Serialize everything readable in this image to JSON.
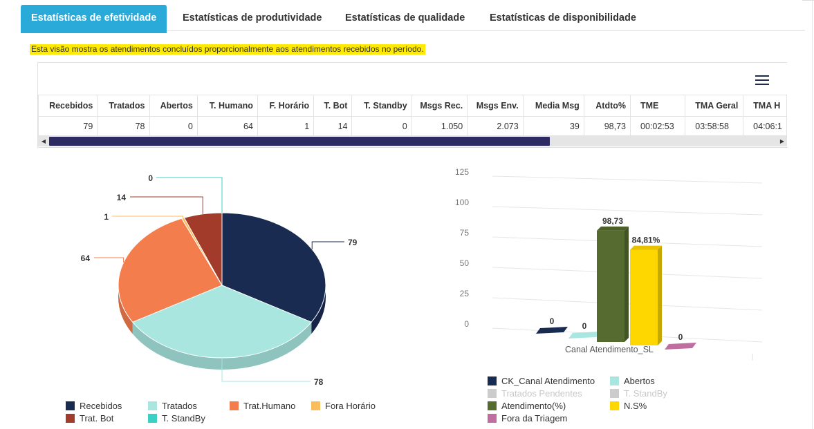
{
  "tabs": [
    {
      "label": "Estatísticas de efetividade",
      "active": true
    },
    {
      "label": "Estatísticas de produtividade",
      "active": false
    },
    {
      "label": "Estatísticas de qualidade",
      "active": false
    },
    {
      "label": "Estatísticas de disponibilidade",
      "active": false
    }
  ],
  "info_text": "Esta visão mostra os atendimentos concluídos proporcionalmente aos atendimentos recebidos no período.",
  "icons": {
    "menu": "hamburger-menu-icon",
    "scroll_left": "arrow-left-icon",
    "scroll_right": "arrow-right-icon"
  },
  "table": {
    "headers": [
      "Recebidos",
      "Tratados",
      "Abertos",
      "T. Humano",
      "F. Horário",
      "T. Bot",
      "T. Standby",
      "Msgs Rec.",
      "Msgs Env.",
      "Media Msg",
      "Atdto%",
      "TME",
      "TMA Geral",
      "TMA H"
    ],
    "row": [
      "79",
      "78",
      "0",
      "64",
      "1",
      "14",
      "0",
      "1.050",
      "2.073",
      "39",
      "98,73",
      "00:02:53",
      "03:58:58",
      "04:06:1"
    ]
  },
  "colors": {
    "tab_active": "#2aaad8",
    "highlight": "#ffea00",
    "navy": "#1a2b52",
    "aqua": "#a8e6df",
    "orange": "#f47d4e",
    "light_orange": "#fbbd5c",
    "brick": "#a23b29",
    "teal": "#3bd0c4",
    "olive": "#556b2f",
    "yellow": "#ffd700",
    "pink": "#c06da0",
    "scroll_thumb": "#2e2b63"
  },
  "chart_data": [
    {
      "type": "pie",
      "slices": [
        {
          "name": "Recebidos",
          "value": 79,
          "color": "#1a2b52"
        },
        {
          "name": "Tratados",
          "value": 78,
          "color": "#a8e6df"
        },
        {
          "name": "Trat.Humano",
          "value": 64,
          "color": "#f47d4e"
        },
        {
          "name": "Fora Horário",
          "value": 1,
          "color": "#fbbd5c"
        },
        {
          "name": "Trat. Bot",
          "value": 14,
          "color": "#a23b29"
        },
        {
          "name": "T. StandBy",
          "value": 0,
          "color": "#3bd0c4"
        }
      ],
      "legend_placement": "bottom"
    },
    {
      "type": "bar",
      "category": "Canal Atendimento_SL",
      "yticks": [
        0,
        25,
        50,
        75,
        100,
        125
      ],
      "ylim": [
        0,
        125
      ],
      "grid": true,
      "series": [
        {
          "name": "CK_Canal Atendimento",
          "value": 0,
          "label": "0",
          "color": "#1a2b52",
          "visible": true
        },
        {
          "name": "Abertos",
          "value": 0,
          "label": "0",
          "color": "#a8e6df",
          "visible": true
        },
        {
          "name": "Tratados Pendentes",
          "color": "#cccccc",
          "visible": false
        },
        {
          "name": "T. StandBy",
          "color": "#cccccc",
          "visible": false
        },
        {
          "name": "Atendimento(%)",
          "value": 98.73,
          "label": "98,73",
          "color": "#556b2f",
          "visible": true
        },
        {
          "name": "N.S%",
          "value": 84.81,
          "label": "84,81%",
          "color": "#ffd700",
          "visible": true
        },
        {
          "name": "Fora da Triagem",
          "value": 0,
          "label": "0",
          "color": "#c06da0",
          "visible": true
        }
      ],
      "legend_placement": "bottom"
    }
  ]
}
